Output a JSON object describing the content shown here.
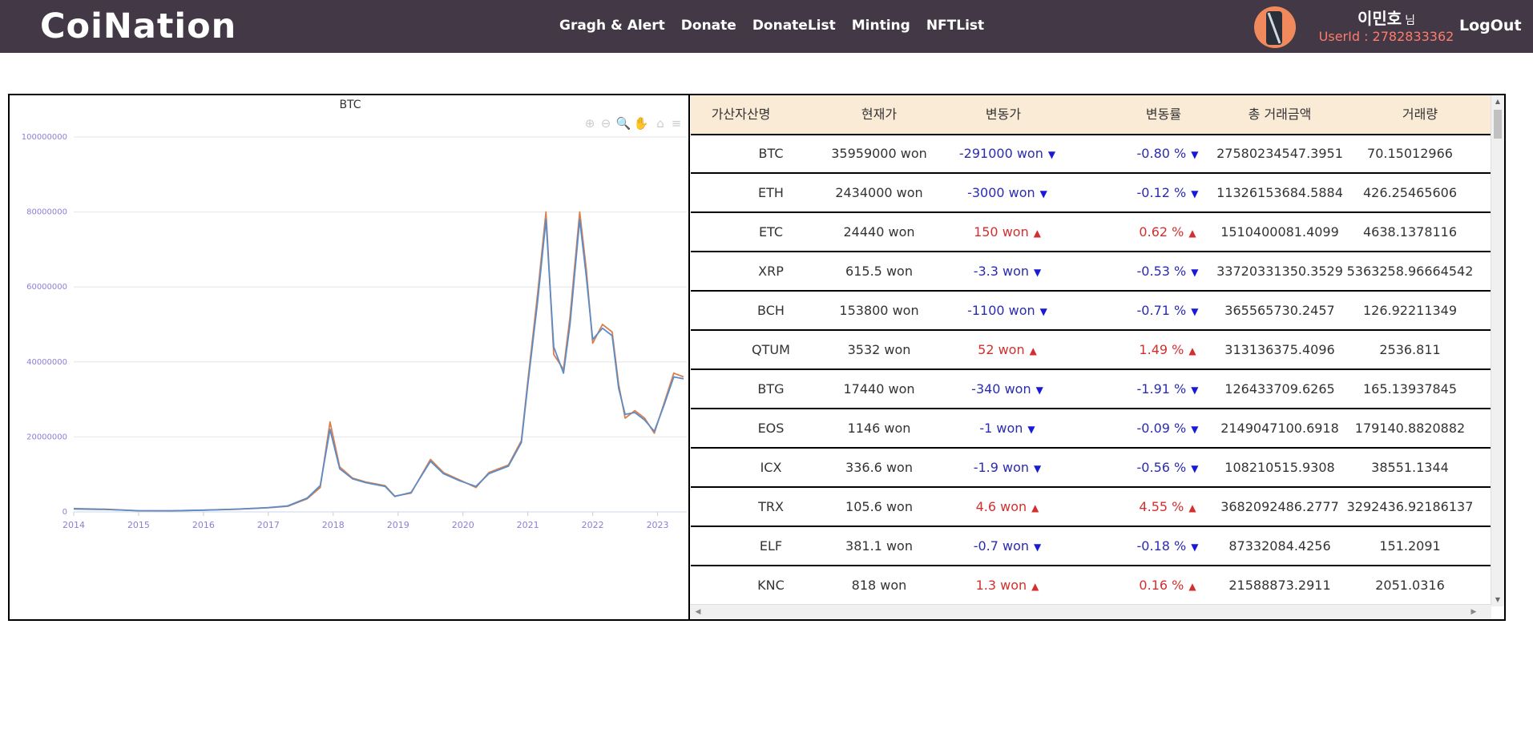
{
  "header": {
    "logo": "CoiNation",
    "nav": [
      "Gragh & Alert",
      "Donate",
      "DonateList",
      "Minting",
      "NFTList"
    ],
    "username": "이민호",
    "honorific": "님",
    "userid": "UserId : 2782833362",
    "logout": "LogOut"
  },
  "table": {
    "headers": [
      "가산자산명",
      "현재가",
      "변동가",
      "변동률",
      "총 거래금액",
      "거래량"
    ],
    "rows": [
      {
        "name": "BTC",
        "price": "35959000 won",
        "change": "-291000 won",
        "rate": "-0.80 %",
        "dir": "down",
        "total": "27580234547.3951",
        "volume": "70.15012966"
      },
      {
        "name": "ETH",
        "price": "2434000 won",
        "change": "-3000 won",
        "rate": "-0.12 %",
        "dir": "down",
        "total": "11326153684.5884",
        "volume": "426.25465606"
      },
      {
        "name": "ETC",
        "price": "24440 won",
        "change": "150 won",
        "rate": "0.62 %",
        "dir": "up",
        "total": "1510400081.4099",
        "volume": "4638.1378116"
      },
      {
        "name": "XRP",
        "price": "615.5 won",
        "change": "-3.3 won",
        "rate": "-0.53 %",
        "dir": "down",
        "total": "33720331350.3529",
        "volume": "5363258.96664542"
      },
      {
        "name": "BCH",
        "price": "153800 won",
        "change": "-1100 won",
        "rate": "-0.71 %",
        "dir": "down",
        "total": "365565730.2457",
        "volume": "126.92211349"
      },
      {
        "name": "QTUM",
        "price": "3532 won",
        "change": "52 won",
        "rate": "1.49 %",
        "dir": "up",
        "total": "313136375.4096",
        "volume": "2536.811"
      },
      {
        "name": "BTG",
        "price": "17440 won",
        "change": "-340 won",
        "rate": "-1.91 %",
        "dir": "down",
        "total": "126433709.6265",
        "volume": "165.13937845"
      },
      {
        "name": "EOS",
        "price": "1146 won",
        "change": "-1 won",
        "rate": "-0.09 %",
        "dir": "down",
        "total": "2149047100.6918",
        "volume": "179140.8820882"
      },
      {
        "name": "ICX",
        "price": "336.6 won",
        "change": "-1.9 won",
        "rate": "-0.56 %",
        "dir": "down",
        "total": "108210515.9308",
        "volume": "38551.1344"
      },
      {
        "name": "TRX",
        "price": "105.6 won",
        "change": "4.6 won",
        "rate": "4.55 %",
        "dir": "up",
        "total": "3682092486.2777",
        "volume": "3292436.92186137"
      },
      {
        "name": "ELF",
        "price": "381.1 won",
        "change": "-0.7 won",
        "rate": "-0.18 %",
        "dir": "down",
        "total": "87332084.4256",
        "volume": "151.2091"
      },
      {
        "name": "KNC",
        "price": "818 won",
        "change": "1.3 won",
        "rate": "0.16 %",
        "dir": "up",
        "total": "21588873.2911",
        "volume": "2051.0316"
      }
    ]
  },
  "colors": {
    "up": "#d32f2f",
    "down": "#2b2bb3",
    "series_a": "#5b8cc8",
    "series_b": "#d98050",
    "header_bg": "#433846"
  },
  "chart_data": {
    "type": "line",
    "title": "BTC",
    "ylim": [
      0,
      100000000
    ],
    "yticks": [
      "0",
      "20000000",
      "40000000",
      "60000000",
      "80000000",
      "100000000"
    ],
    "xticks": [
      "2014",
      "2015",
      "2016",
      "2017",
      "2018",
      "2019",
      "2020",
      "2021",
      "2022",
      "2023"
    ],
    "xlim": [
      2014.0,
      2023.45
    ],
    "grid": true,
    "series": [
      {
        "values": [
          [
            2014.0,
            900000
          ],
          [
            2014.5,
            700000
          ],
          [
            2015.0,
            300000
          ],
          [
            2015.5,
            280000
          ],
          [
            2016.0,
            450000
          ],
          [
            2016.5,
            700000
          ],
          [
            2017.0,
            1100000
          ],
          [
            2017.3,
            1500000
          ],
          [
            2017.6,
            3500000
          ],
          [
            2017.8,
            6500000
          ],
          [
            2017.95,
            24000000
          ],
          [
            2018.1,
            12000000
          ],
          [
            2018.3,
            9000000
          ],
          [
            2018.5,
            8000000
          ],
          [
            2018.8,
            7000000
          ],
          [
            2018.95,
            4200000
          ],
          [
            2019.2,
            5000000
          ],
          [
            2019.5,
            14000000
          ],
          [
            2019.7,
            10500000
          ],
          [
            2019.95,
            8500000
          ],
          [
            2020.2,
            6500000
          ],
          [
            2020.4,
            10500000
          ],
          [
            2020.7,
            12500000
          ],
          [
            2020.9,
            19000000
          ],
          [
            2021.0,
            35000000
          ],
          [
            2021.15,
            58000000
          ],
          [
            2021.28,
            80000000
          ],
          [
            2021.4,
            42000000
          ],
          [
            2021.55,
            38000000
          ],
          [
            2021.65,
            52000000
          ],
          [
            2021.8,
            80000000
          ],
          [
            2021.9,
            65000000
          ],
          [
            2022.0,
            45000000
          ],
          [
            2022.15,
            50000000
          ],
          [
            2022.3,
            48000000
          ],
          [
            2022.4,
            34000000
          ],
          [
            2022.5,
            25000000
          ],
          [
            2022.65,
            27000000
          ],
          [
            2022.8,
            25000000
          ],
          [
            2022.95,
            21000000
          ],
          [
            2023.1,
            29000000
          ],
          [
            2023.25,
            37000000
          ],
          [
            2023.4,
            36000000
          ]
        ]
      },
      {
        "values": [
          [
            2014.0,
            800000
          ],
          [
            2014.5,
            650000
          ],
          [
            2015.0,
            320000
          ],
          [
            2015.5,
            300000
          ],
          [
            2016.0,
            480000
          ],
          [
            2016.5,
            720000
          ],
          [
            2017.0,
            1150000
          ],
          [
            2017.3,
            1600000
          ],
          [
            2017.6,
            3700000
          ],
          [
            2017.8,
            7000000
          ],
          [
            2017.95,
            22000000
          ],
          [
            2018.1,
            11500000
          ],
          [
            2018.3,
            8800000
          ],
          [
            2018.5,
            7800000
          ],
          [
            2018.8,
            6800000
          ],
          [
            2018.95,
            4100000
          ],
          [
            2019.2,
            5200000
          ],
          [
            2019.5,
            13500000
          ],
          [
            2019.7,
            10200000
          ],
          [
            2019.95,
            8300000
          ],
          [
            2020.2,
            6800000
          ],
          [
            2020.4,
            10200000
          ],
          [
            2020.7,
            12200000
          ],
          [
            2020.9,
            18500000
          ],
          [
            2021.0,
            34000000
          ],
          [
            2021.15,
            56000000
          ],
          [
            2021.28,
            78000000
          ],
          [
            2021.4,
            44000000
          ],
          [
            2021.55,
            37000000
          ],
          [
            2021.65,
            50000000
          ],
          [
            2021.8,
            78000000
          ],
          [
            2021.9,
            63000000
          ],
          [
            2022.0,
            46000000
          ],
          [
            2022.15,
            49000000
          ],
          [
            2022.3,
            47000000
          ],
          [
            2022.4,
            33000000
          ],
          [
            2022.5,
            26000000
          ],
          [
            2022.65,
            26500000
          ],
          [
            2022.8,
            24500000
          ],
          [
            2022.95,
            21500000
          ],
          [
            2023.1,
            28500000
          ],
          [
            2023.25,
            36000000
          ],
          [
            2023.4,
            35500000
          ]
        ]
      }
    ]
  }
}
